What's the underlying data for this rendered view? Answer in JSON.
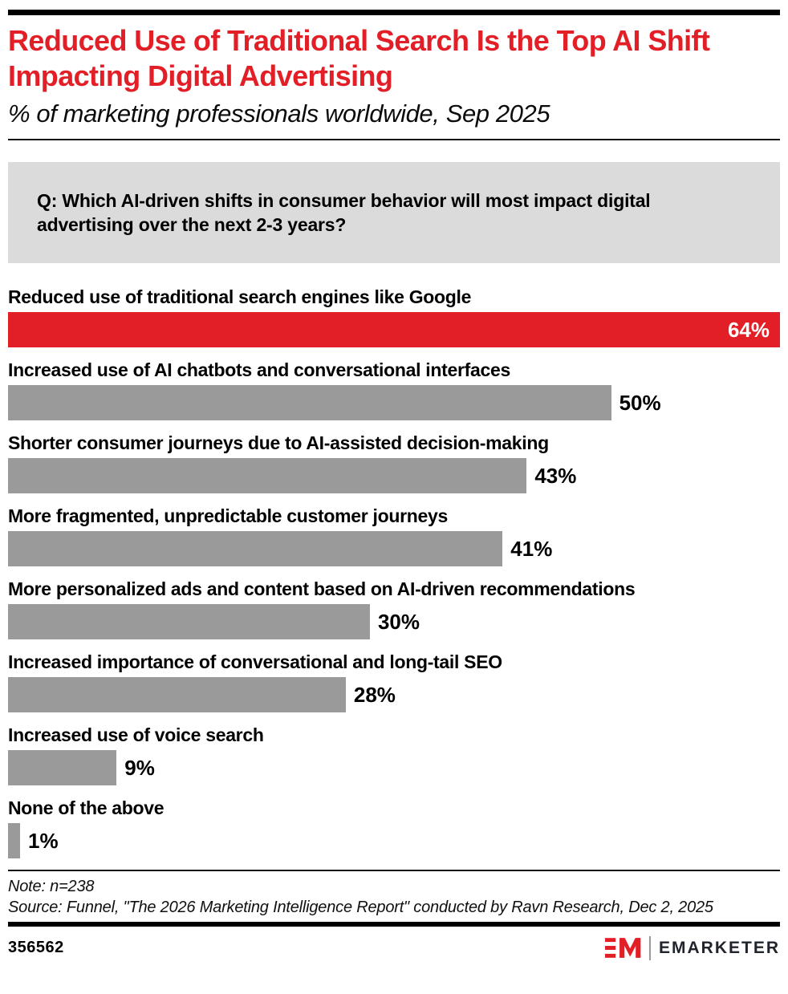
{
  "header": {
    "title": "Reduced Use of Traditional Search Is the Top AI Shift Impacting Digital Advertising",
    "subtitle": "% of marketing professionals worldwide, Sep 2025"
  },
  "question": {
    "text": "Q: Which AI-driven shifts in consumer behavior will most impact digital advertising over the next 2-3 years?"
  },
  "chart_data": {
    "type": "bar",
    "orientation": "horizontal",
    "title": "Reduced Use of Traditional Search Is the Top AI Shift Impacting Digital Advertising",
    "subtitle": "% of marketing professionals worldwide, Sep 2025",
    "xlabel": "",
    "ylabel": "",
    "xlim": [
      0,
      64
    ],
    "grid": false,
    "legend": "none",
    "categories": [
      "Reduced use of traditional search engines like Google",
      "Increased use of AI chatbots and conversational interfaces",
      "Shorter consumer journeys due to AI-assisted decision-making",
      "More fragmented, unpredictable customer journeys",
      "More personalized ads and content based on AI-driven recommendations",
      "Increased importance of conversational and long-tail SEO",
      "Increased use of voice search",
      "None of the above"
    ],
    "values": [
      64,
      50,
      43,
      41,
      30,
      28,
      9,
      1
    ],
    "value_labels": [
      "64%",
      "50%",
      "43%",
      "41%",
      "30%",
      "28%",
      "9%",
      "1%"
    ],
    "highlight_index": 0,
    "highlight_color": "#E21F26",
    "bar_color": "#9A9A9A"
  },
  "footer": {
    "note": "Note: n=238",
    "source": "Source: Funnel, \"The 2026 Marketing Intelligence Report\" conducted by Ravn Research, Dec 2, 2025",
    "chart_id": "356562",
    "brand": "EMARKETER"
  },
  "colors": {
    "accent_red": "#E21F26",
    "bar_gray": "#9A9A9A",
    "question_box_bg": "#DBDBDB",
    "rule_black": "#000000",
    "brand_text": "#20242B"
  }
}
